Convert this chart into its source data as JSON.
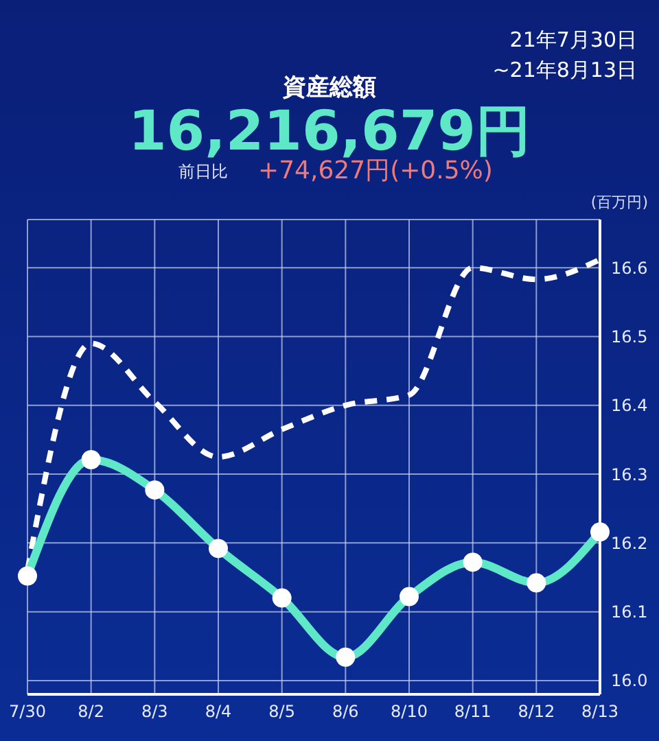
{
  "chart_data": {
    "type": "line",
    "title": "資産総額",
    "subtitle": "16,216,679円",
    "ylabel": "(百万円)",
    "annotations": [
      "21年7月30日",
      "~21年8月13日",
      "前日比",
      "+74,627円(+0.5%)"
    ],
    "categories": [
      "7/30",
      "8/2",
      "8/3",
      "8/4",
      "8/5",
      "8/6",
      "8/10",
      "8/11",
      "8/12",
      "8/13"
    ],
    "series": [
      {
        "color": "#ffffff",
        "line_style": "dashed",
        "marker": "none",
        "values": [
          16.16,
          16.49,
          16.405,
          16.325,
          16.365,
          16.4,
          16.415,
          16.6,
          16.583,
          16.612
        ]
      },
      {
        "color": "#5ee8c8",
        "line_style": "solid",
        "marker": "circle",
        "values": [
          16.152,
          16.321,
          16.277,
          16.192,
          16.12,
          16.034,
          16.122,
          16.172,
          16.142,
          16.216
        ]
      }
    ],
    "ylim": [
      15.98,
      16.67
    ],
    "yticks": [
      {
        "value": 16,
        "label": "16.0"
      },
      16.1,
      16.2,
      16.3,
      16.4,
      16.5,
      16.6
    ],
    "grid": true,
    "legend": false
  }
}
